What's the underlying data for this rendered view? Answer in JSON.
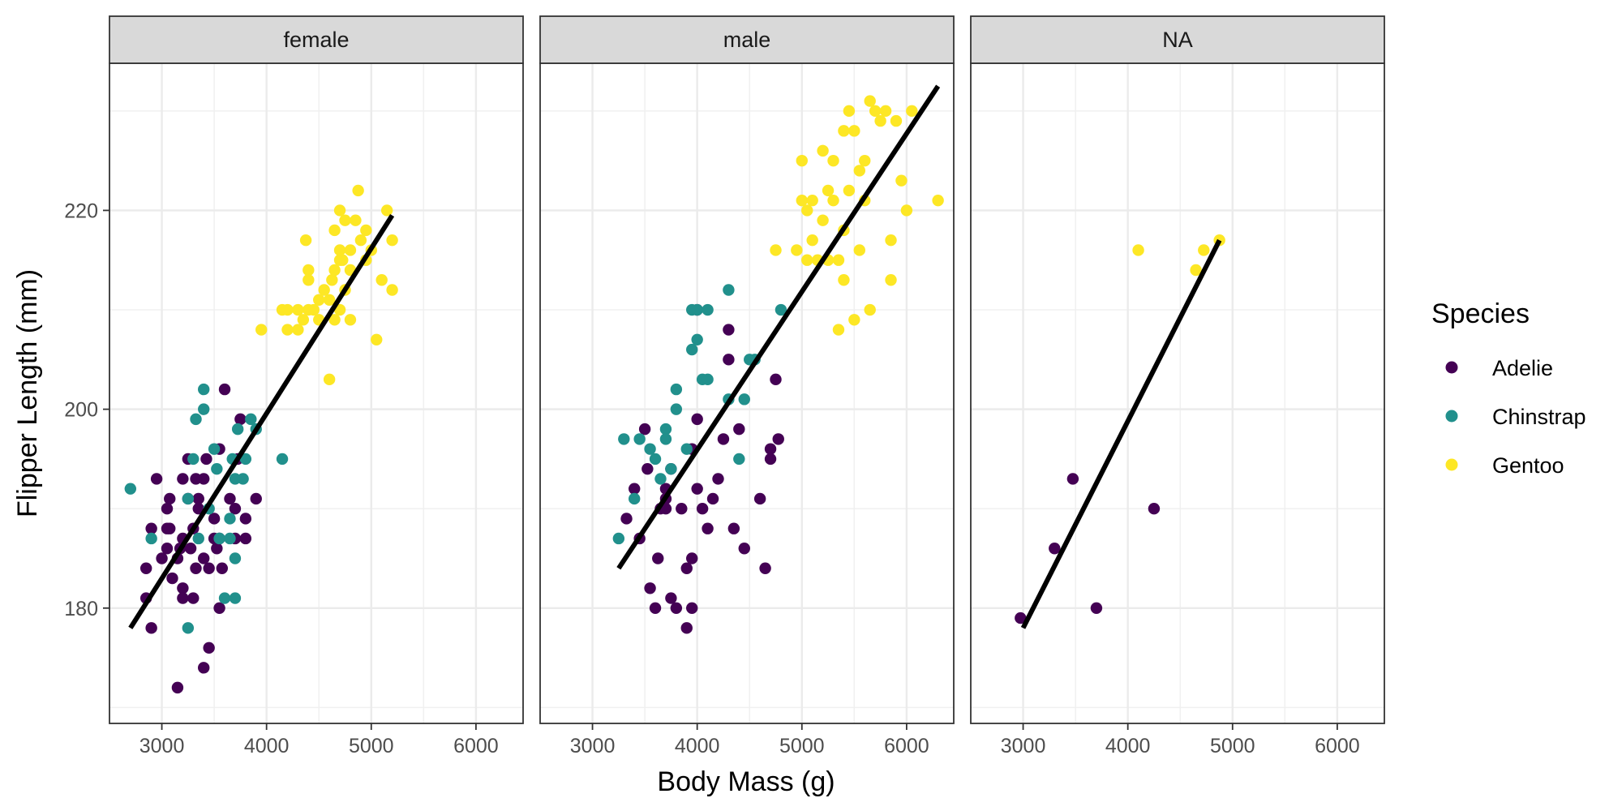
{
  "chart_data": {
    "type": "scatter",
    "xlabel": "Body Mass (g)",
    "ylabel": "Flipper Length (mm)",
    "xlim": [
      2500,
      6450
    ],
    "ylim": [
      168.4,
      234.8
    ],
    "x_ticks": [
      3000,
      4000,
      5000,
      6000
    ],
    "y_ticks": [
      180,
      200,
      220
    ],
    "grid": true,
    "legend": {
      "title": "Species",
      "position": "right",
      "entries": [
        {
          "name": "Adelie",
          "color": "#440154"
        },
        {
          "name": "Chinstrap",
          "color": "#21908C"
        },
        {
          "name": "Gentoo",
          "color": "#FDE725"
        }
      ]
    },
    "panels": [
      {
        "label": "female",
        "fit_line": {
          "x": [
            2700,
            5200
          ],
          "y": [
            178,
            219.5
          ]
        },
        "series": [
          {
            "name": "Adelie",
            "points": [
              [
                2850,
                184
              ],
              [
                2850,
                181
              ],
              [
                2900,
                178
              ],
              [
                2900,
                188
              ],
              [
                2950,
                193
              ],
              [
                3000,
                185
              ],
              [
                3050,
                190
              ],
              [
                3050,
                188
              ],
              [
                3050,
                186
              ],
              [
                3075,
                191
              ],
              [
                3100,
                183
              ],
              [
                3150,
                172
              ],
              [
                3150,
                185
              ],
              [
                3175,
                186
              ],
              [
                3200,
                182
              ],
              [
                3200,
                181
              ],
              [
                3200,
                187
              ],
              [
                3200,
                193
              ],
              [
                3250,
                195
              ],
              [
                3250,
                191
              ],
              [
                3275,
                186
              ],
              [
                3300,
                181
              ],
              [
                3300,
                188
              ],
              [
                3325,
                184
              ],
              [
                3350,
                190
              ],
              [
                3350,
                191
              ],
              [
                3400,
                174
              ],
              [
                3400,
                185
              ],
              [
                3400,
                193
              ],
              [
                3425,
                195
              ],
              [
                3450,
                176
              ],
              [
                3450,
                184
              ],
              [
                3500,
                187
              ],
              [
                3500,
                189
              ],
              [
                3525,
                186
              ],
              [
                3550,
                196
              ],
              [
                3550,
                180
              ],
              [
                3550,
                187
              ],
              [
                3575,
                184
              ],
              [
                3600,
                202
              ],
              [
                3650,
                191
              ],
              [
                3700,
                187
              ],
              [
                3700,
                190
              ],
              [
                3725,
                195
              ],
              [
                3750,
                199
              ],
              [
                3800,
                187
              ],
              [
                3800,
                189
              ],
              [
                3900,
                191
              ],
              [
                3325,
                193
              ],
              [
                3075,
                188
              ]
            ]
          },
          {
            "name": "Chinstrap",
            "points": [
              [
                2700,
                192
              ],
              [
                2900,
                187
              ],
              [
                3250,
                191
              ],
              [
                3250,
                178
              ],
              [
                3300,
                195
              ],
              [
                3325,
                199
              ],
              [
                3350,
                187
              ],
              [
                3400,
                200
              ],
              [
                3400,
                202
              ],
              [
                3450,
                190
              ],
              [
                3500,
                196
              ],
              [
                3525,
                194
              ],
              [
                3550,
                187
              ],
              [
                3600,
                181
              ],
              [
                3650,
                189
              ],
              [
                3650,
                187
              ],
              [
                3675,
                195
              ],
              [
                3700,
                181
              ],
              [
                3700,
                185
              ],
              [
                3700,
                193
              ],
              [
                3725,
                198
              ],
              [
                3775,
                193
              ],
              [
                3800,
                195
              ],
              [
                3850,
                199
              ],
              [
                3900,
                198
              ],
              [
                4150,
                195
              ]
            ]
          },
          {
            "name": "Gentoo",
            "points": [
              [
                3950,
                208
              ],
              [
                4150,
                210
              ],
              [
                4200,
                210
              ],
              [
                4200,
                208
              ],
              [
                4300,
                210
              ],
              [
                4300,
                208
              ],
              [
                4350,
                209
              ],
              [
                4375,
                217
              ],
              [
                4400,
                214
              ],
              [
                4400,
                213
              ],
              [
                4400,
                210
              ],
              [
                4450,
                210
              ],
              [
                4500,
                211
              ],
              [
                4500,
                209
              ],
              [
                4550,
                212
              ],
              [
                4600,
                203
              ],
              [
                4600,
                211
              ],
              [
                4625,
                213
              ],
              [
                4650,
                214
              ],
              [
                4650,
                218
              ],
              [
                4650,
                209
              ],
              [
                4700,
                210
              ],
              [
                4700,
                215
              ],
              [
                4700,
                220
              ],
              [
                4700,
                216
              ],
              [
                4725,
                215
              ],
              [
                4750,
                212
              ],
              [
                4750,
                219
              ],
              [
                4800,
                216
              ],
              [
                4800,
                214
              ],
              [
                4800,
                209
              ],
              [
                4850,
                219
              ],
              [
                4875,
                222
              ],
              [
                4900,
                217
              ],
              [
                4950,
                218
              ],
              [
                4950,
                215
              ],
              [
                5000,
                216
              ],
              [
                5050,
                207
              ],
              [
                5100,
                213
              ],
              [
                5150,
                220
              ],
              [
                5200,
                217
              ],
              [
                5200,
                212
              ]
            ]
          }
        ]
      },
      {
        "label": "male",
        "fit_line": {
          "x": [
            3250,
            6300
          ],
          "y": [
            184,
            232.5
          ]
        },
        "series": [
          {
            "name": "Adelie",
            "points": [
              [
                3325,
                189
              ],
              [
                3450,
                187
              ],
              [
                3500,
                198
              ],
              [
                3525,
                194
              ],
              [
                3550,
                182
              ],
              [
                3600,
                180
              ],
              [
                3625,
                185
              ],
              [
                3650,
                190
              ],
              [
                3700,
                192
              ],
              [
                3700,
                191
              ],
              [
                3750,
                194
              ],
              [
                3750,
                181
              ],
              [
                3800,
                180
              ],
              [
                3850,
                190
              ],
              [
                3900,
                178
              ],
              [
                3950,
                196
              ],
              [
                3950,
                185
              ],
              [
                3950,
                180
              ],
              [
                4000,
                199
              ],
              [
                4000,
                192
              ],
              [
                4050,
                190
              ],
              [
                4100,
                188
              ],
              [
                4150,
                191
              ],
              [
                4200,
                193
              ],
              [
                4250,
                197
              ],
              [
                4300,
                208
              ],
              [
                4300,
                205
              ],
              [
                4350,
                188
              ],
              [
                4400,
                198
              ],
              [
                4450,
                186
              ],
              [
                4600,
                191
              ],
              [
                4650,
                184
              ],
              [
                4700,
                196
              ],
              [
                4700,
                195
              ],
              [
                4750,
                203
              ],
              [
                4775,
                197
              ],
              [
                3900,
                184
              ],
              [
                4000,
                210
              ],
              [
                3400,
                192
              ],
              [
                3700,
                190
              ]
            ]
          },
          {
            "name": "Chinstrap",
            "points": [
              [
                3250,
                187
              ],
              [
                3300,
                197
              ],
              [
                3400,
                191
              ],
              [
                3450,
                197
              ],
              [
                3550,
                196
              ],
              [
                3600,
                195
              ],
              [
                3650,
                193
              ],
              [
                3700,
                198
              ],
              [
                3700,
                197
              ],
              [
                3750,
                194
              ],
              [
                3800,
                202
              ],
              [
                3800,
                200
              ],
              [
                3900,
                196
              ],
              [
                3950,
                210
              ],
              [
                3950,
                206
              ],
              [
                4000,
                210
              ],
              [
                4000,
                207
              ],
              [
                4050,
                203
              ],
              [
                4100,
                203
              ],
              [
                4100,
                210
              ],
              [
                4300,
                201
              ],
              [
                4300,
                212
              ],
              [
                4400,
                195
              ],
              [
                4450,
                201
              ],
              [
                4500,
                205
              ],
              [
                4550,
                205
              ],
              [
                4800,
                210
              ]
            ]
          },
          {
            "name": "Gentoo",
            "points": [
              [
                4750,
                216
              ],
              [
                4950,
                216
              ],
              [
                5000,
                225
              ],
              [
                5000,
                221
              ],
              [
                5050,
                220
              ],
              [
                5050,
                215
              ],
              [
                5100,
                221
              ],
              [
                5150,
                215
              ],
              [
                5200,
                219
              ],
              [
                5200,
                226
              ],
              [
                5250,
                222
              ],
              [
                5250,
                215
              ],
              [
                5300,
                225
              ],
              [
                5300,
                221
              ],
              [
                5350,
                208
              ],
              [
                5350,
                215
              ],
              [
                5400,
                228
              ],
              [
                5400,
                213
              ],
              [
                5450,
                222
              ],
              [
                5450,
                230
              ],
              [
                5500,
                209
              ],
              [
                5500,
                228
              ],
              [
                5550,
                224
              ],
              [
                5550,
                216
              ],
              [
                5600,
                225
              ],
              [
                5600,
                221
              ],
              [
                5650,
                231
              ],
              [
                5650,
                210
              ],
              [
                5700,
                230
              ],
              [
                5750,
                229
              ],
              [
                5800,
                230
              ],
              [
                5850,
                213
              ],
              [
                5850,
                217
              ],
              [
                5900,
                229
              ],
              [
                5950,
                223
              ],
              [
                6000,
                220
              ],
              [
                6050,
                230
              ],
              [
                6300,
                221
              ],
              [
                5100,
                217
              ],
              [
                5400,
                218
              ]
            ]
          }
        ]
      },
      {
        "label": "NA",
        "fit_line": {
          "x": [
            3000,
            4875
          ],
          "y": [
            178,
            217
          ]
        },
        "series": [
          {
            "name": "Adelie",
            "points": [
              [
                2975,
                179
              ],
              [
                3300,
                186
              ],
              [
                3475,
                193
              ],
              [
                3700,
                180
              ],
              [
                4250,
                190
              ]
            ]
          },
          {
            "name": "Gentoo",
            "points": [
              [
                4100,
                216
              ],
              [
                4650,
                214
              ],
              [
                4725,
                216
              ],
              [
                4875,
                217
              ]
            ]
          }
        ]
      }
    ]
  }
}
